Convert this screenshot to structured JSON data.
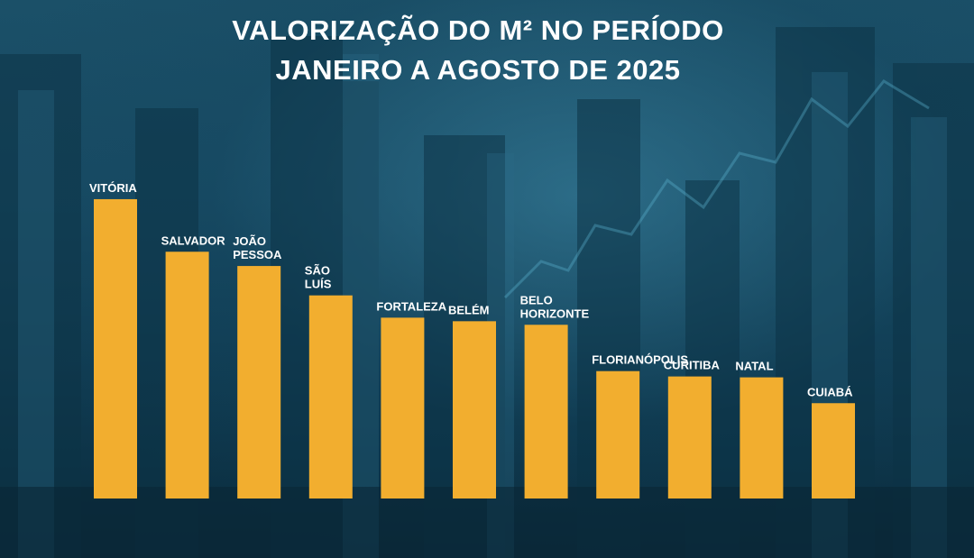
{
  "title": {
    "line1": "VALORIZAÇÃO DO M² NO PERÍODO",
    "line2": "JANEIRO A AGOSTO DE 2025"
  },
  "colors": {
    "bar": "#f2ae2f",
    "background": "#174a63",
    "text": "#ffffff"
  },
  "chart_data": {
    "type": "bar",
    "title": "VALORIZAÇÃO DO M² NO PERÍODO JANEIRO A AGOSTO DE 2025",
    "categories": [
      "VITÓRIA",
      "SALVADOR",
      "JOÃO PESSOA",
      "SÃO LUÍS",
      "FORTALEZA",
      "BELÉM",
      "BELO HORIZONTE",
      "FLORIANÓPOLIS",
      "CURITIBA",
      "NATAL",
      "CUIABÁ"
    ],
    "label_lines": [
      [
        "VITÓRIA"
      ],
      [
        "SALVADOR"
      ],
      [
        "JOÃO",
        "PESSOA"
      ],
      [
        "SÃO",
        "LUÍS"
      ],
      [
        "FORTALEZA"
      ],
      [
        "BELÉM"
      ],
      [
        "BELO",
        "HORIZONTE"
      ],
      [
        "FLORIANÓPOLIS"
      ],
      [
        "CURITIBA"
      ],
      [
        "NATAL"
      ],
      [
        "CUIABÁ"
      ]
    ],
    "values": [
      336,
      277,
      261,
      228,
      203,
      199,
      195,
      143,
      137,
      136,
      107
    ],
    "value_unit": "relative bar height (values not printed in image)",
    "ylim": [
      0,
      340
    ],
    "xlabel": "",
    "ylabel": "",
    "grid": false,
    "legend": "none"
  }
}
